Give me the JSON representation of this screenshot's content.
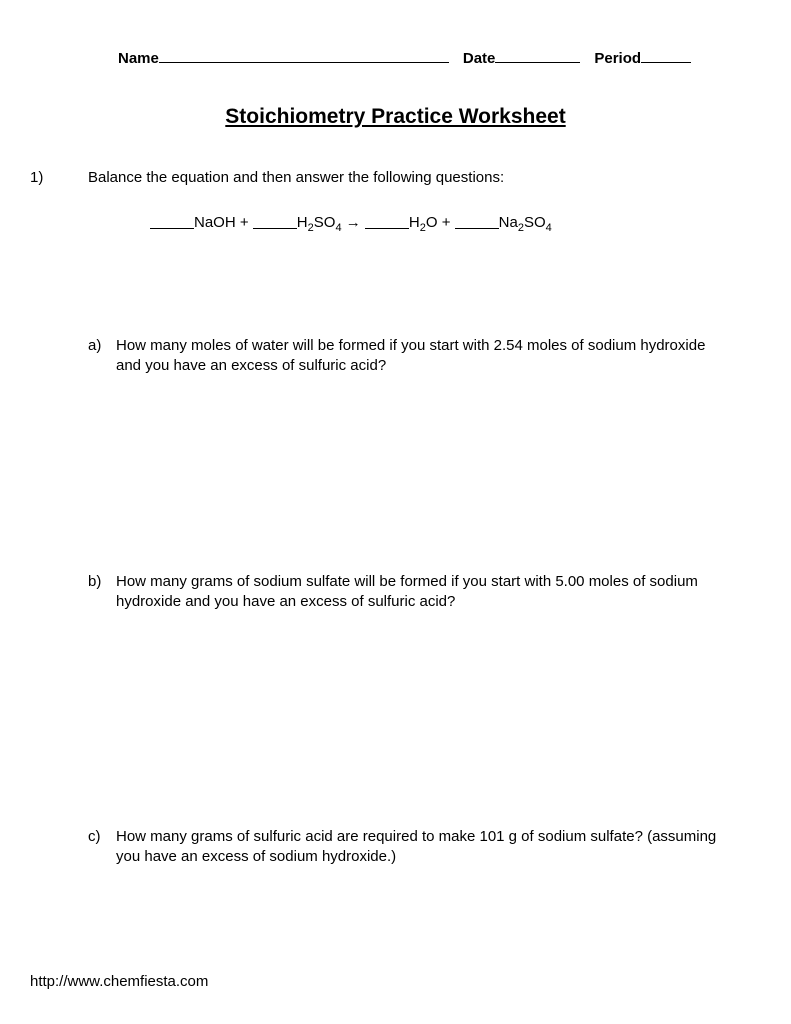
{
  "header": {
    "name_label": "Name",
    "date_label": "Date",
    "period_label": "Period"
  },
  "title": "Stoichiometry Practice Worksheet",
  "question": {
    "number": "1)",
    "prompt": "Balance the equation and then answer the following questions:",
    "equation": {
      "r1": "NaOH",
      "plus1": " + ",
      "r2_pre": "H",
      "r2_sub1": "2",
      "r2_mid": "SO",
      "r2_sub2": "4",
      "arrow": " → ",
      "p1_pre": "H",
      "p1_sub": "2",
      "p1_post": "O",
      "plus2": " + ",
      "p2_pre": "Na",
      "p2_sub1": "2",
      "p2_mid": "SO",
      "p2_sub2": "4"
    },
    "parts": {
      "a": {
        "letter": "a)",
        "text": "How many moles of water will be formed if you start with 2.54 moles of sodium hydroxide and you have an excess of sulfuric acid?"
      },
      "b": {
        "letter": "b)",
        "text": "How many grams of sodium sulfate will be formed if you start with 5.00 moles of sodium hydroxide and you have an excess of sulfuric acid?"
      },
      "c": {
        "letter": "c)",
        "text": "How many grams of sulfuric acid are required to make 101 g of sodium sulfate? (assuming you have  an excess of sodium hydroxide.)"
      }
    }
  },
  "footer": "http://www.chemfiesta.com"
}
